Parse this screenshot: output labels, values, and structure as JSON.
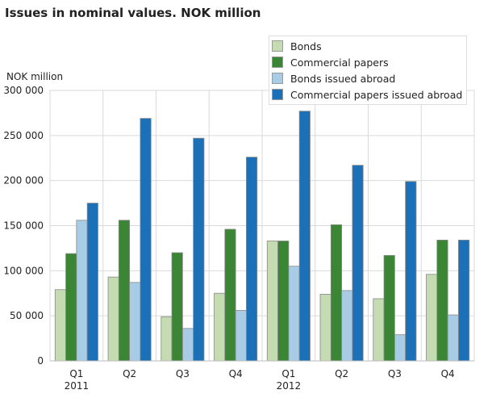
{
  "chart_data": {
    "type": "bar",
    "title": "Issues in nominal values. NOK million",
    "ylabel": "NOK million",
    "xlabel": "",
    "ylim": [
      0,
      300000
    ],
    "yticks": [
      0,
      50000,
      100000,
      150000,
      200000,
      250000,
      300000
    ],
    "ytick_labels": [
      "0",
      "50 000",
      "100 000",
      "150 000",
      "200 000",
      "250 000",
      "300 000"
    ],
    "categories": [
      "Q1",
      "Q2",
      "Q3",
      "Q4",
      "Q1",
      "Q2",
      "Q3",
      "Q4"
    ],
    "category_sublabels": [
      "2011",
      "",
      "",
      "",
      "2012",
      "",
      "",
      ""
    ],
    "grid": true,
    "legend_position": "top-right",
    "series": [
      {
        "name": "Bonds",
        "color": "#c5dcb3",
        "values": [
          79000,
          93000,
          49000,
          75000,
          133000,
          74000,
          69000,
          96000
        ]
      },
      {
        "name": "Commercial papers",
        "color": "#3a8634",
        "values": [
          119000,
          156000,
          120000,
          146000,
          133000,
          151000,
          117000,
          134000
        ]
      },
      {
        "name": "Bonds issued abroad",
        "color": "#a8cce5",
        "values": [
          156000,
          87000,
          36000,
          56000,
          105000,
          78000,
          29000,
          51000
        ]
      },
      {
        "name": "Commercial papers issued abroad",
        "color": "#1b70b7",
        "values": [
          175000,
          269000,
          247000,
          226000,
          277000,
          217000,
          199000,
          134000
        ]
      }
    ]
  }
}
